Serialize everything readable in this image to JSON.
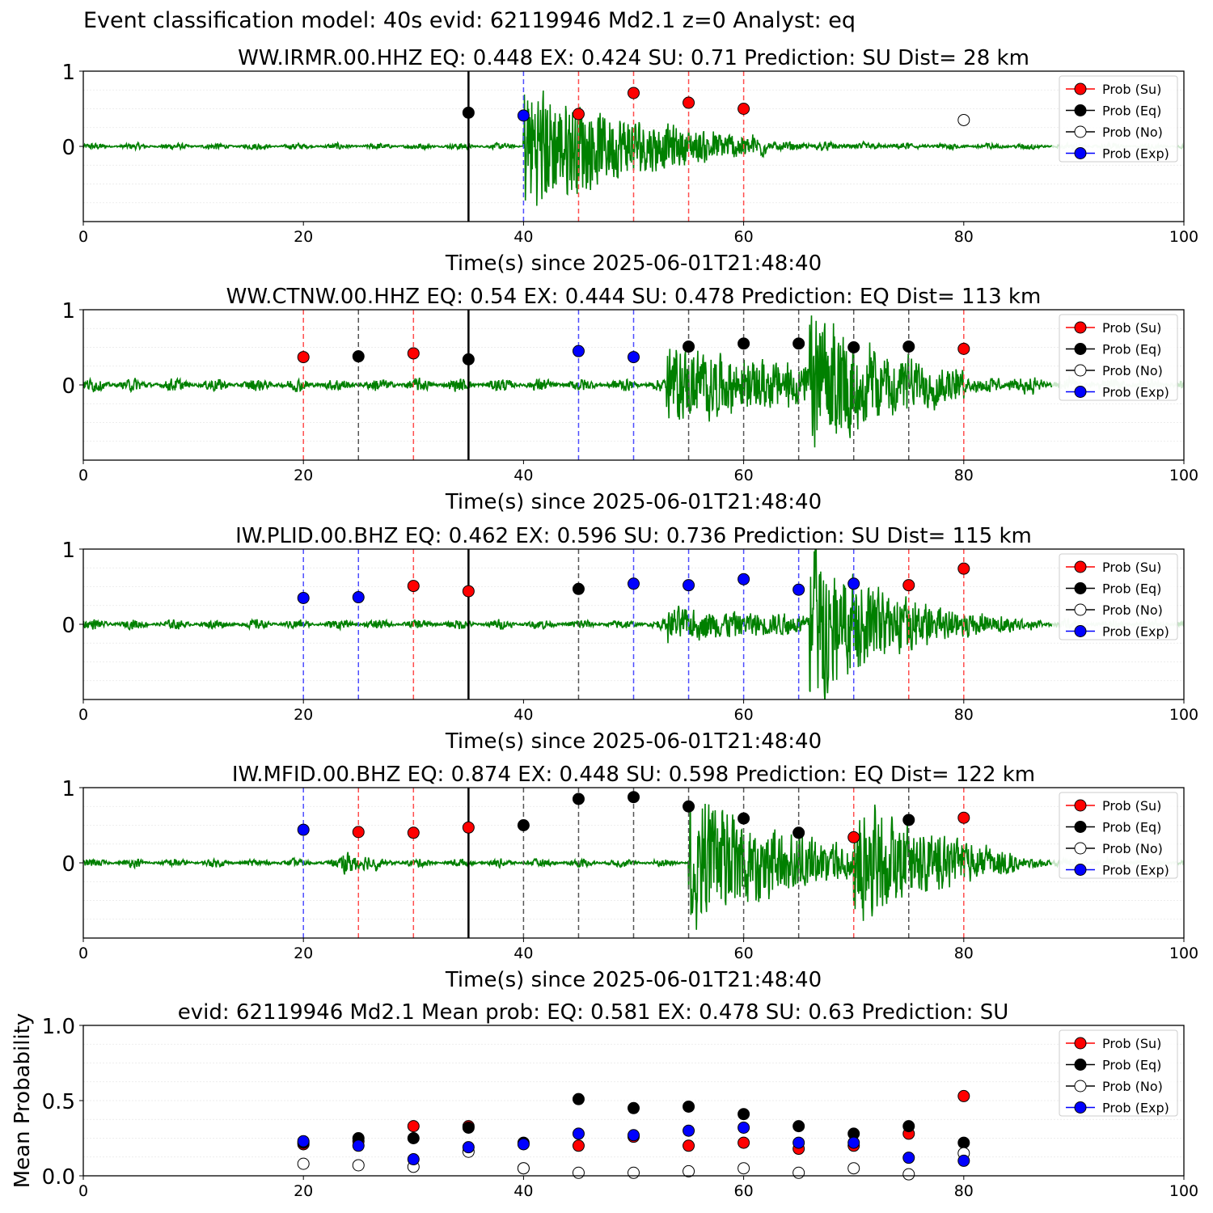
{
  "suptitle": "Event classification model: 40s evid: 62119946 Md2.1 z=0 Analyst: eq",
  "colors": {
    "su": "#ff0000",
    "eq": "#000000",
    "no": "#ffffff",
    "exp": "#0000ff",
    "trace": "#008000",
    "trace_faded": "#c8e6c8",
    "vline_su": "#ff4d4d",
    "vline_eq": "#555555",
    "vline_exp": "#4d4dff",
    "pick": "#000000"
  },
  "legend": {
    "placement": "upper right",
    "entries": [
      "Prob (Su)",
      "Prob (Eq)",
      "Prob (No)",
      "Prob (Exp)"
    ]
  },
  "chart_data": [
    {
      "type": "scatter",
      "title": "WW.IRMR.00.HHZ   EQ: 0.448  EX: 0.424  SU: 0.71   Prediction: SU    Dist= 28 km",
      "xlabel": "Time(s) since 2025-06-01T21:48:40",
      "xlim": [
        0,
        100
      ],
      "ylim": [
        -1,
        1
      ],
      "xticks": [
        "0",
        "20",
        "40",
        "60",
        "80",
        "100"
      ],
      "yticks": [
        "0",
        "1"
      ],
      "pick_time": 35,
      "waveform": {
        "start": 0,
        "end": 100,
        "faded_after": 88,
        "noise": 0.04,
        "bursts": [
          {
            "start": 40,
            "end": 62,
            "amp": 0.85,
            "decay": 0.09
          }
        ]
      },
      "windows": [
        {
          "t": 35,
          "class": "Eq",
          "prob": 0.448
        },
        {
          "t": 40,
          "class": "Exp",
          "prob": 0.41
        },
        {
          "t": 45,
          "class": "Su",
          "prob": 0.43
        },
        {
          "t": 50,
          "class": "Su",
          "prob": 0.71
        },
        {
          "t": 55,
          "class": "Su",
          "prob": 0.58
        },
        {
          "t": 60,
          "class": "Su",
          "prob": 0.5
        },
        {
          "t": 80,
          "class": "No",
          "prob": 0.35
        }
      ]
    },
    {
      "type": "scatter",
      "title": "WW.CTNW.00.HHZ   EQ: 0.54  EX: 0.444  SU: 0.478   Prediction: EQ    Dist= 113 km",
      "xlabel": "Time(s) since 2025-06-01T21:48:40",
      "xlim": [
        0,
        100
      ],
      "ylim": [
        -1,
        1
      ],
      "xticks": [
        "0",
        "20",
        "40",
        "60",
        "80",
        "100"
      ],
      "yticks": [
        "0",
        "1"
      ],
      "pick_time": 35,
      "waveform": {
        "start": 0,
        "end": 100,
        "faded_after": 88,
        "noise": 0.08,
        "bursts": [
          {
            "start": 53,
            "end": 66,
            "amp": 0.45,
            "decay": 0.05
          },
          {
            "start": 66,
            "end": 80,
            "amp": 0.9,
            "decay": 0.12
          }
        ]
      },
      "windows": [
        {
          "t": 20,
          "class": "Su",
          "prob": 0.37
        },
        {
          "t": 25,
          "class": "Eq",
          "prob": 0.38
        },
        {
          "t": 30,
          "class": "Su",
          "prob": 0.42
        },
        {
          "t": 35,
          "class": "Eq",
          "prob": 0.34
        },
        {
          "t": 45,
          "class": "Exp",
          "prob": 0.45
        },
        {
          "t": 50,
          "class": "Exp",
          "prob": 0.37
        },
        {
          "t": 55,
          "class": "Eq",
          "prob": 0.51
        },
        {
          "t": 60,
          "class": "Eq",
          "prob": 0.55
        },
        {
          "t": 65,
          "class": "Eq",
          "prob": 0.55
        },
        {
          "t": 70,
          "class": "Eq",
          "prob": 0.5
        },
        {
          "t": 75,
          "class": "Eq",
          "prob": 0.51
        },
        {
          "t": 80,
          "class": "Su",
          "prob": 0.48
        }
      ]
    },
    {
      "type": "scatter",
      "title": "IW.PLID.00.BHZ   EQ: 0.462  EX: 0.596  SU: 0.736   Prediction: SU    Dist= 115 km",
      "xlabel": "Time(s) since 2025-06-01T21:48:40",
      "xlim": [
        0,
        100
      ],
      "ylim": [
        -1,
        1
      ],
      "xticks": [
        "0",
        "20",
        "40",
        "60",
        "80",
        "100"
      ],
      "yticks": [
        "0",
        "1"
      ],
      "pick_time": 35,
      "waveform": {
        "start": 0,
        "end": 100,
        "faded_after": 88,
        "noise": 0.06,
        "bursts": [
          {
            "start": 53,
            "end": 66,
            "amp": 0.2,
            "decay": 0.05
          },
          {
            "start": 66,
            "end": 85,
            "amp": 0.95,
            "decay": 0.13
          }
        ]
      },
      "windows": [
        {
          "t": 20,
          "class": "Exp",
          "prob": 0.35
        },
        {
          "t": 25,
          "class": "Exp",
          "prob": 0.36
        },
        {
          "t": 30,
          "class": "Su",
          "prob": 0.51
        },
        {
          "t": 35,
          "class": "Su",
          "prob": 0.44
        },
        {
          "t": 45,
          "class": "Eq",
          "prob": 0.47
        },
        {
          "t": 50,
          "class": "Exp",
          "prob": 0.54
        },
        {
          "t": 55,
          "class": "Exp",
          "prob": 0.52
        },
        {
          "t": 60,
          "class": "Exp",
          "prob": 0.6
        },
        {
          "t": 65,
          "class": "Exp",
          "prob": 0.46
        },
        {
          "t": 70,
          "class": "Exp",
          "prob": 0.54
        },
        {
          "t": 75,
          "class": "Su",
          "prob": 0.52
        },
        {
          "t": 80,
          "class": "Su",
          "prob": 0.74
        }
      ]
    },
    {
      "type": "scatter",
      "title": "IW.MFID.00.BHZ   EQ: 0.874  EX: 0.448  SU: 0.598   Prediction: EQ    Dist= 122 km",
      "xlabel": "Time(s) since 2025-06-01T21:48:40",
      "xlim": [
        0,
        100
      ],
      "ylim": [
        -1,
        1
      ],
      "xticks": [
        "0",
        "20",
        "40",
        "60",
        "80",
        "100"
      ],
      "yticks": [
        "0",
        "1"
      ],
      "pick_time": 35,
      "waveform": {
        "start": 0,
        "end": 100,
        "faded_after": 88,
        "noise": 0.05,
        "bursts": [
          {
            "start": 23.5,
            "end": 27,
            "amp": 0.15,
            "decay": 0.3
          },
          {
            "start": 55,
            "end": 70,
            "amp": 0.95,
            "decay": 0.11
          },
          {
            "start": 70,
            "end": 85,
            "amp": 0.85,
            "decay": 0.13
          }
        ]
      },
      "windows": [
        {
          "t": 20,
          "class": "Exp",
          "prob": 0.44
        },
        {
          "t": 25,
          "class": "Su",
          "prob": 0.41
        },
        {
          "t": 30,
          "class": "Su",
          "prob": 0.4
        },
        {
          "t": 35,
          "class": "Su",
          "prob": 0.47
        },
        {
          "t": 40,
          "class": "Eq",
          "prob": 0.5
        },
        {
          "t": 45,
          "class": "Eq",
          "prob": 0.85
        },
        {
          "t": 50,
          "class": "Eq",
          "prob": 0.874
        },
        {
          "t": 55,
          "class": "Eq",
          "prob": 0.75
        },
        {
          "t": 60,
          "class": "Eq",
          "prob": 0.59
        },
        {
          "t": 65,
          "class": "Eq",
          "prob": 0.4
        },
        {
          "t": 70,
          "class": "Su",
          "prob": 0.34
        },
        {
          "t": 75,
          "class": "Eq",
          "prob": 0.57
        },
        {
          "t": 80,
          "class": "Su",
          "prob": 0.6
        }
      ]
    },
    {
      "type": "scatter",
      "title": "evid: 62119946  Md2.1   Mean prob:   EQ: 0.581  EX: 0.478  SU: 0.63   Prediction: SU",
      "xlabel": "",
      "ylabel": "Mean Probability",
      "xlim": [
        0,
        100
      ],
      "ylim": [
        0,
        1
      ],
      "xticks": [
        "0",
        "20",
        "40",
        "60",
        "80",
        "100"
      ],
      "yticks": [
        "0.0",
        "0.5",
        "1.0"
      ],
      "x": [
        20,
        25,
        30,
        35,
        40,
        45,
        50,
        55,
        60,
        65,
        70,
        75,
        80
      ],
      "series": [
        {
          "name": "Prob (Su)",
          "values": [
            0.21,
            0.23,
            0.33,
            0.33,
            0.05,
            0.2,
            0.26,
            0.2,
            0.22,
            0.18,
            0.2,
            0.28,
            0.53
          ]
        },
        {
          "name": "Prob (Eq)",
          "values": [
            0.22,
            0.25,
            0.25,
            0.32,
            0.22,
            0.51,
            0.45,
            0.46,
            0.41,
            0.33,
            0.28,
            0.33,
            0.22
          ]
        },
        {
          "name": "Prob (No)",
          "values": [
            0.08,
            0.07,
            0.06,
            0.16,
            0.05,
            0.02,
            0.02,
            0.03,
            0.05,
            0.02,
            0.05,
            0.01,
            0.15
          ]
        },
        {
          "name": "Prob (Exp)",
          "values": [
            0.23,
            0.2,
            0.11,
            0.19,
            0.21,
            0.28,
            0.27,
            0.3,
            0.32,
            0.22,
            0.22,
            0.12,
            0.1
          ]
        }
      ]
    }
  ]
}
